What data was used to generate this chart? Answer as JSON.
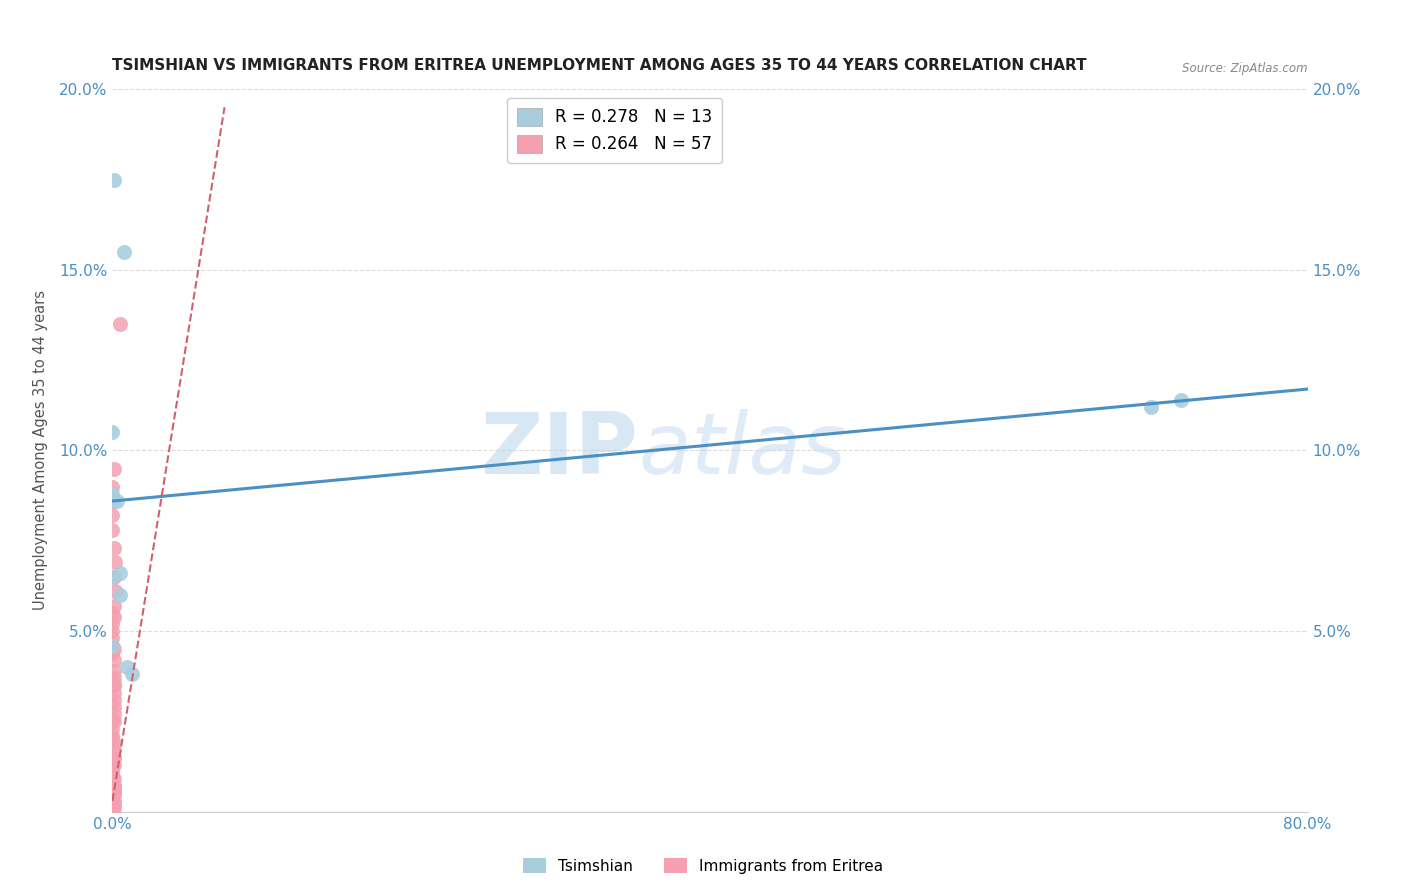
{
  "title": "TSIMSHIAN VS IMMIGRANTS FROM ERITREA UNEMPLOYMENT AMONG AGES 35 TO 44 YEARS CORRELATION CHART",
  "source": "Source: ZipAtlas.com",
  "ylabel": "Unemployment Among Ages 35 to 44 years",
  "watermark_part1": "ZIP",
  "watermark_part2": "atlas",
  "xlim": [
    0,
    0.8
  ],
  "ylim": [
    0,
    0.2
  ],
  "xticks": [
    0.0,
    0.1,
    0.2,
    0.3,
    0.4,
    0.5,
    0.6,
    0.7,
    0.8
  ],
  "xticklabels": [
    "0.0%",
    "",
    "",
    "",
    "",
    "",
    "",
    "",
    "80.0%"
  ],
  "yticks": [
    0.0,
    0.05,
    0.1,
    0.15,
    0.2
  ],
  "yticklabels_left": [
    "",
    "5.0%",
    "10.0%",
    "15.0%",
    "20.0%"
  ],
  "yticklabels_right": [
    "",
    "5.0%",
    "10.0%",
    "15.0%",
    "20.0%"
  ],
  "tsimshian_color": "#A8CEDE",
  "eritrea_color": "#F4A0B0",
  "tsimshian_line_color": "#4A90C4",
  "eritrea_line_color": "#D06070",
  "tsimshian_x": [
    0.001,
    0.008,
    0.0,
    0.0,
    0.0,
    0.003,
    0.005,
    0.0,
    0.01,
    0.013,
    0.005,
    0.695,
    0.715
  ],
  "tsimshian_y": [
    0.175,
    0.155,
    0.105,
    0.088,
    0.065,
    0.086,
    0.06,
    0.046,
    0.04,
    0.038,
    0.066,
    0.112,
    0.114
  ],
  "eritrea_x": [
    0.005,
    0.001,
    0.0,
    0.0,
    0.0,
    0.0,
    0.001,
    0.002,
    0.001,
    0.002,
    0.001,
    0.001,
    0.0,
    0.0,
    0.0,
    0.0,
    0.0,
    0.001,
    0.001,
    0.001,
    0.001,
    0.001,
    0.001,
    0.001,
    0.001,
    0.0,
    0.0,
    0.0,
    0.0,
    0.001,
    0.001,
    0.001,
    0.0,
    0.001,
    0.0,
    0.0,
    0.0,
    0.001,
    0.0,
    0.001,
    0.001,
    0.001,
    0.001,
    0.001,
    0.001,
    0.0,
    0.0,
    0.001,
    0.0,
    0.001,
    0.001,
    0.0,
    0.001,
    0.001,
    0.001,
    0.001,
    0.0
  ],
  "eritrea_y": [
    0.135,
    0.095,
    0.09,
    0.086,
    0.082,
    0.078,
    0.073,
    0.069,
    0.065,
    0.061,
    0.057,
    0.054,
    0.052,
    0.05,
    0.048,
    0.046,
    0.044,
    0.042,
    0.039,
    0.037,
    0.035,
    0.033,
    0.031,
    0.029,
    0.027,
    0.025,
    0.023,
    0.021,
    0.02,
    0.019,
    0.017,
    0.015,
    0.014,
    0.013,
    0.012,
    0.011,
    0.01,
    0.009,
    0.008,
    0.007,
    0.007,
    0.006,
    0.006,
    0.005,
    0.005,
    0.004,
    0.003,
    0.003,
    0.002,
    0.002,
    0.001,
    0.001,
    0.015,
    0.025,
    0.035,
    0.045,
    0.055
  ],
  "tsim_trend_x0": 0.0,
  "tsim_trend_y0": 0.086,
  "tsim_trend_x1": 0.8,
  "tsim_trend_y1": 0.117,
  "eri_trend_x0": 0.0,
  "eri_trend_y0": 0.003,
  "eri_trend_x1": 0.075,
  "eri_trend_y1": 0.195,
  "background_color": "#FFFFFF",
  "grid_color": "#DDDDDD"
}
